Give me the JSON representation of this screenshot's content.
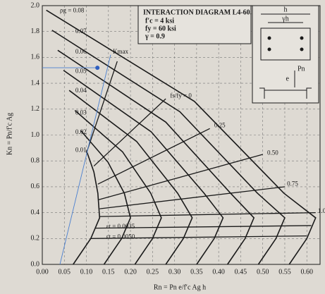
{
  "chart_data": {
    "type": "line",
    "title": "INTERACTION DIAGRAM L4-60.9",
    "subtitle_lines": [
      "f′c = 4 ksi",
      "fy = 60 ksi",
      "γ = 0.9"
    ],
    "x_label": "Rn = Pn e/f′c Ag h",
    "y_label": "Kn = Pn/f′c Ag",
    "xlim": [
      0,
      0.63
    ],
    "ylim": [
      0,
      2.0
    ],
    "grid": true,
    "xticks": [
      {
        "value": 0,
        "label": "0.00"
      },
      {
        "value": 0.05,
        "label": "0.05"
      },
      {
        "value": 0.1,
        "label": "0.10"
      },
      {
        "value": 0.15,
        "label": "0.15"
      },
      {
        "value": 0.2,
        "label": "0.20"
      },
      {
        "value": 0.25,
        "label": "0.25"
      },
      {
        "value": 0.3,
        "label": "0.30"
      },
      {
        "value": 0.35,
        "label": "0.35"
      },
      {
        "value": 0.4,
        "label": "0.40"
      },
      {
        "value": 0.45,
        "label": "0.45"
      },
      {
        "value": 0.5,
        "label": "0.50"
      },
      {
        "value": 0.55,
        "label": "0.55"
      },
      {
        "value": 0.6,
        "label": "0.60"
      }
    ],
    "yticks": [
      {
        "value": 0,
        "label": "0.0"
      },
      {
        "value": 0.2,
        "label": "0.2"
      },
      {
        "value": 0.4,
        "label": "0.4"
      },
      {
        "value": 0.6,
        "label": "0.6"
      },
      {
        "value": 0.8,
        "label": "0.8"
      },
      {
        "value": 1,
        "label": "1.0"
      },
      {
        "value": 1.2,
        "label": "1.2"
      },
      {
        "value": 1.4,
        "label": "1.4"
      },
      {
        "value": 1.6,
        "label": "1.6"
      },
      {
        "value": 1.8,
        "label": "1.8"
      },
      {
        "value": 2,
        "label": "2.0"
      }
    ],
    "color": "#1a1a1a",
    "series": [
      {
        "x": [
          0.1,
          0.117,
          0.126,
          0.13,
          0.11,
          0.07
        ],
        "values": [
          0.88,
          0.715,
          0.55,
          0.36,
          0.2,
          0
        ]
      },
      {
        "x": [
          0.087,
          0.149,
          0.186,
          0.2,
          0.18,
          0.14
        ],
        "values": [
          1.035,
          0.79,
          0.55,
          0.36,
          0.2,
          0
        ]
      },
      {
        "x": [
          0.074,
          0.182,
          0.246,
          0.27,
          0.25,
          0.21
        ],
        "values": [
          1.19,
          0.87,
          0.55,
          0.36,
          0.2,
          0
        ]
      },
      {
        "x": [
          0.061,
          0.214,
          0.307,
          0.34,
          0.32,
          0.28
        ],
        "values": [
          1.345,
          0.95,
          0.55,
          0.36,
          0.2,
          0
        ]
      },
      {
        "x": [
          0.048,
          0.247,
          0.367,
          0.41,
          0.39,
          0.35
        ],
        "values": [
          1.5,
          1.025,
          0.55,
          0.36,
          0.2,
          0
        ]
      },
      {
        "x": [
          0.035,
          0.28,
          0.427,
          0.48,
          0.46,
          0.42
        ],
        "values": [
          1.655,
          1.1,
          0.55,
          0.36,
          0.2,
          0
        ]
      },
      {
        "x": [
          0.022,
          0.312,
          0.488,
          0.55,
          0.53,
          0.49
        ],
        "values": [
          1.81,
          1.18,
          0.55,
          0.36,
          0.2,
          0
        ]
      },
      {
        "x": [
          0.009,
          0.345,
          0.548,
          0.62,
          0.6,
          0.56
        ],
        "values": [
          1.965,
          1.26,
          0.55,
          0.36,
          0.2,
          0
        ]
      }
    ],
    "guides": [
      {
        "x": [
          0.1,
          0.17
        ],
        "values": [
          0.86,
          1.57
        ]
      },
      {
        "x": [
          0.117,
          0.28
        ],
        "values": [
          0.76,
          1.28
        ]
      },
      {
        "x": [
          0.126,
          0.38
        ],
        "values": [
          0.62,
          1.05
        ]
      },
      {
        "x": [
          0.128,
          0.5
        ],
        "values": [
          0.5,
          0.85
        ]
      },
      {
        "x": [
          0.13,
          0.55
        ],
        "values": [
          0.43,
          0.6
        ]
      },
      {
        "x": [
          0.13,
          0.62
        ],
        "values": [
          0.37,
          0.4
        ]
      },
      {
        "x": [
          0.12,
          0.61
        ],
        "values": [
          0.28,
          0.3
        ]
      },
      {
        "x": [
          0.11,
          0.6
        ],
        "values": [
          0.2,
          0.22
        ]
      },
      {
        "x": [
          0.04,
          0.155
        ],
        "values": [
          0,
          1.62
        ],
        "color": "#4a7fd0"
      },
      {
        "x": [
          0,
          0.125
        ],
        "values": [
          1.52,
          1.52
        ],
        "color": "#4a7fd0"
      }
    ],
    "point": {
      "x": 0.125,
      "y": 1.52,
      "color": "#2f5fc0"
    },
    "annotations": [
      {
        "text": "ρg = 0.08",
        "x": 0.04,
        "y": 1.96
      },
      {
        "text": "0.07",
        "x": 0.075,
        "y": 1.8
      },
      {
        "text": "0.06",
        "x": 0.075,
        "y": 1.64
      },
      {
        "text": "0.05",
        "x": 0.075,
        "y": 1.49
      },
      {
        "text": "0.04",
        "x": 0.075,
        "y": 1.34
      },
      {
        "text": "0.03",
        "x": 0.075,
        "y": 1.17
      },
      {
        "text": "0.02",
        "x": 0.075,
        "y": 1.02
      },
      {
        "text": "0.01",
        "x": 0.075,
        "y": 0.88
      },
      {
        "text": "Kmax",
        "x": 0.16,
        "y": 1.64
      },
      {
        "text": "fs/fy = 0",
        "x": 0.29,
        "y": 1.3
      },
      {
        "text": "0.25",
        "x": 0.39,
        "y": 1.07
      },
      {
        "text": "0.50",
        "x": 0.51,
        "y": 0.86
      },
      {
        "text": "0.75",
        "x": 0.555,
        "y": 0.62
      },
      {
        "text": "1.0",
        "x": 0.625,
        "y": 0.41
      },
      {
        "text": "εt = 0.0035",
        "x": 0.145,
        "y": 0.29
      },
      {
        "text": "εt = 0.0050",
        "x": 0.145,
        "y": 0.21
      }
    ],
    "inset_labels": [
      "h",
      "γh",
      "e",
      "Pn"
    ]
  }
}
